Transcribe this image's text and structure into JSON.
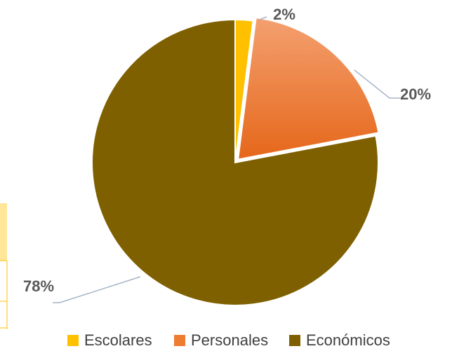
{
  "chart_data": {
    "type": "pie",
    "categories": [
      "Escolares",
      "Personales",
      "Económicos"
    ],
    "values": [
      2,
      20,
      78
    ],
    "value_labels": [
      "2%",
      "20%",
      "78%"
    ],
    "colors": [
      "#ffc000",
      "#ed7d31",
      "#7f6000"
    ]
  }
}
